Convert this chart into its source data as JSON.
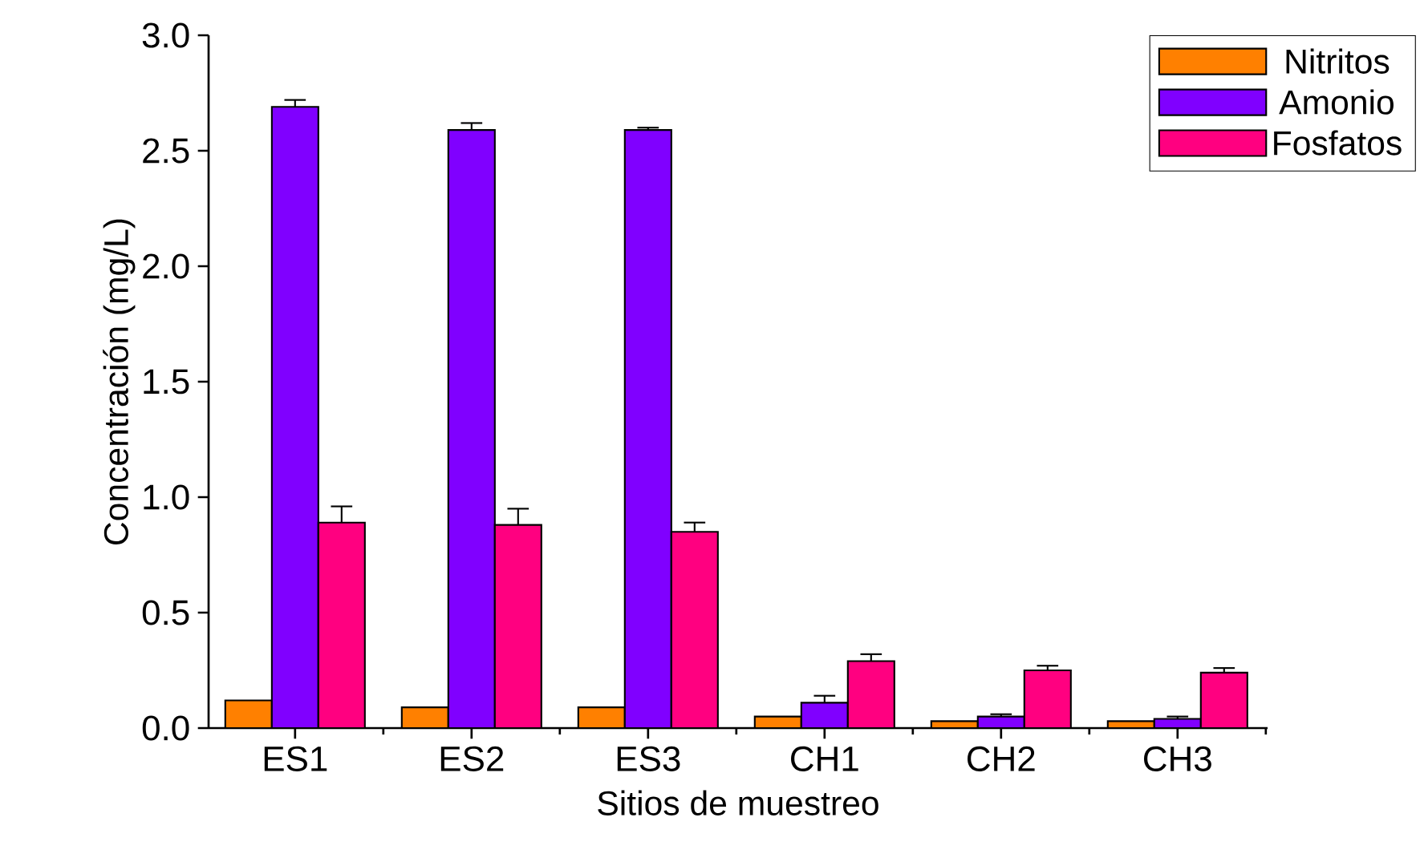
{
  "chart_data": {
    "type": "bar",
    "xlabel": "Sitios de muestreo",
    "ylabel": "Concentración (mg/L)",
    "categories": [
      "ES1",
      "ES2",
      "ES3",
      "CH1",
      "CH2",
      "CH3"
    ],
    "series": [
      {
        "name": "Nitritos",
        "color": "#ff8000",
        "values": [
          0.12,
          0.09,
          0.09,
          0.05,
          0.03,
          0.03
        ]
      },
      {
        "name": "Amonio",
        "color": "#8000ff",
        "values": [
          2.69,
          2.59,
          2.59,
          0.11,
          0.05,
          0.04
        ],
        "errors": [
          0.03,
          0.03,
          0.01,
          0.03,
          0.01,
          0.01
        ]
      },
      {
        "name": "Fosfatos",
        "color": "#ff0080",
        "values": [
          0.89,
          0.88,
          0.85,
          0.29,
          0.25,
          0.24
        ],
        "errors": [
          0.07,
          0.07,
          0.04,
          0.03,
          0.02,
          0.02
        ]
      }
    ],
    "ylim": [
      0,
      3.0
    ],
    "yticks": [
      {
        "value": 0,
        "label": "0.0"
      },
      {
        "value": 0.5,
        "label": "0.5"
      },
      {
        "value": 1.0,
        "label": "1.0"
      },
      {
        "value": 1.5,
        "label": "1.5"
      },
      {
        "value": 2.0,
        "label": "2.0"
      },
      {
        "value": 2.5,
        "label": "2.5"
      },
      {
        "value": 3.0,
        "label": "3.0"
      }
    ],
    "grid": false,
    "legend": "top right"
  }
}
